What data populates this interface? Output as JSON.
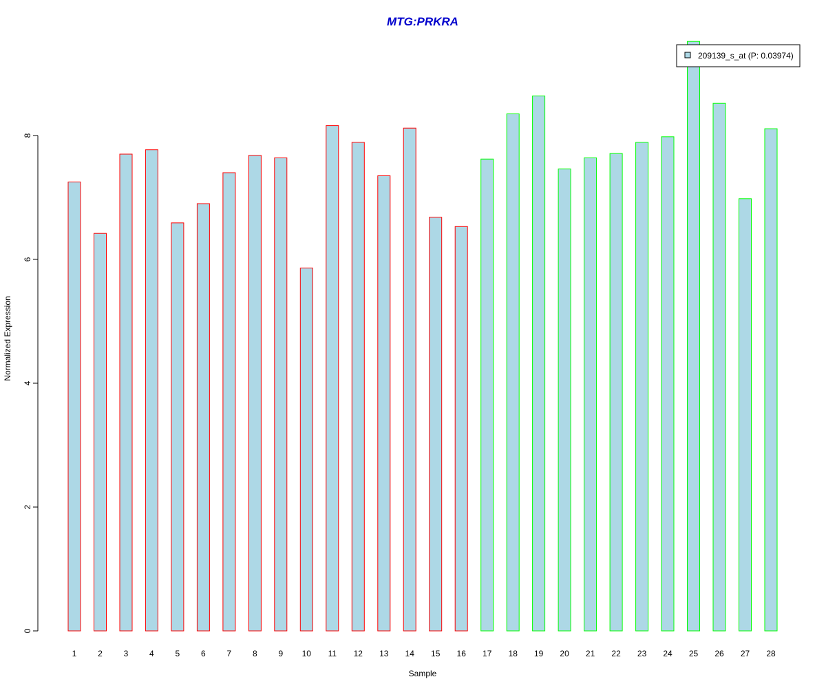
{
  "chart_data": {
    "type": "bar",
    "title": "MTG:PRKRA",
    "title_color": "#0000CC",
    "xlabel": "Sample",
    "ylabel": "Normalized Expression",
    "ylim": [
      0,
      9.6
    ],
    "yticks": [
      0,
      2,
      4,
      6,
      8
    ],
    "categories": [
      "1",
      "2",
      "3",
      "4",
      "5",
      "6",
      "7",
      "8",
      "9",
      "10",
      "11",
      "12",
      "13",
      "14",
      "15",
      "16",
      "17",
      "18",
      "19",
      "20",
      "21",
      "22",
      "23",
      "24",
      "25",
      "26",
      "27",
      "28"
    ],
    "series": [
      {
        "name": "209139_s_at (P: 0.03974)",
        "values": [
          7.25,
          6.42,
          7.7,
          7.77,
          6.59,
          6.9,
          7.4,
          7.68,
          7.64,
          5.86,
          8.16,
          7.89,
          7.35,
          8.12,
          6.68,
          6.53,
          7.62,
          8.35,
          8.64,
          7.46,
          7.64,
          7.71,
          7.89,
          7.98,
          9.52,
          8.52,
          6.98,
          8.11
        ],
        "fill": "#ADD8E6",
        "edge_colors": [
          "#FF0000",
          "#FF0000",
          "#FF0000",
          "#FF0000",
          "#FF0000",
          "#FF0000",
          "#FF0000",
          "#FF0000",
          "#FF0000",
          "#FF0000",
          "#FF0000",
          "#FF0000",
          "#FF0000",
          "#FF0000",
          "#FF0000",
          "#FF0000",
          "#00FF00",
          "#00FF00",
          "#00FF00",
          "#00FF00",
          "#00FF00",
          "#00FF00",
          "#00FF00",
          "#00FF00",
          "#00FF00",
          "#00FF00",
          "#00FF00",
          "#00FF00"
        ]
      }
    ],
    "legend": {
      "label": "209139_s_at (P: 0.03974)",
      "placement": "top-right"
    },
    "grid": false
  }
}
